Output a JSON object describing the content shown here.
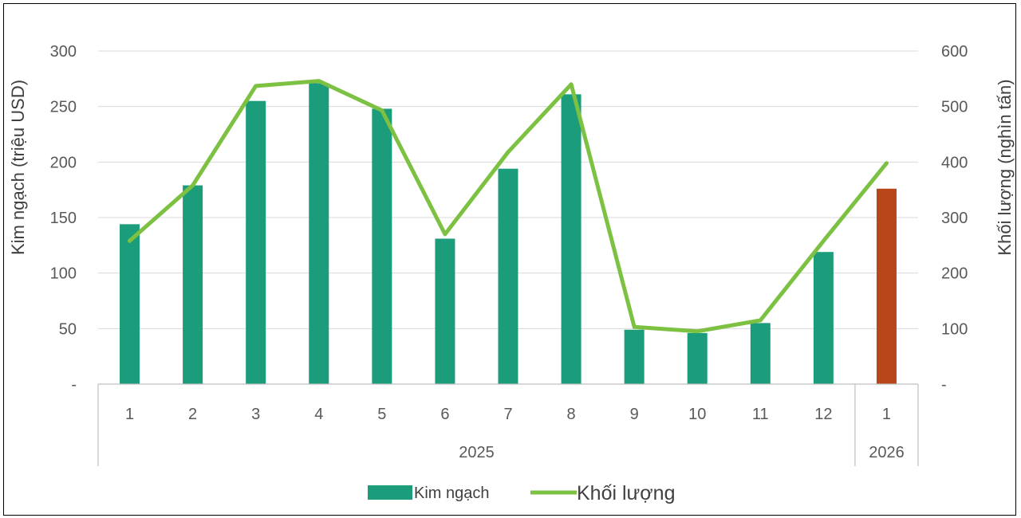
{
  "chart_data": {
    "type": "bar",
    "categories": [
      "1",
      "2",
      "3",
      "4",
      "5",
      "6",
      "7",
      "8",
      "9",
      "10",
      "11",
      "12",
      "1"
    ],
    "groups": [
      {
        "label": "2025",
        "count": 12
      },
      {
        "label": "2026",
        "count": 1
      }
    ],
    "series": [
      {
        "name": "Kim ngạch",
        "type": "bar",
        "axis": "left",
        "color": "#1b9c7a",
        "highlight_color": "#b8461b",
        "highlight_index": 12,
        "values": [
          144,
          179,
          255,
          271,
          248,
          131,
          194,
          261,
          49,
          46,
          55,
          119,
          176
        ]
      },
      {
        "name": "Khối lượng",
        "type": "line",
        "axis": "right",
        "color": "#7dc143",
        "values": [
          258,
          358,
          537,
          546,
          493,
          270,
          418,
          540,
          103,
          95,
          115,
          258,
          398
        ]
      }
    ],
    "ylabel": "Kim ngạch (triệu USD)",
    "y2label": "Khối lượng (nghìn tấn)",
    "ylim": [
      0,
      300
    ],
    "y2lim": [
      0,
      600
    ],
    "yticks": [
      "-",
      "50",
      "100",
      "150",
      "200",
      "250",
      "300"
    ],
    "y2ticks": [
      "-",
      "100",
      "200",
      "300",
      "400",
      "500",
      "600"
    ],
    "grid": true,
    "legend_position": "bottom"
  }
}
